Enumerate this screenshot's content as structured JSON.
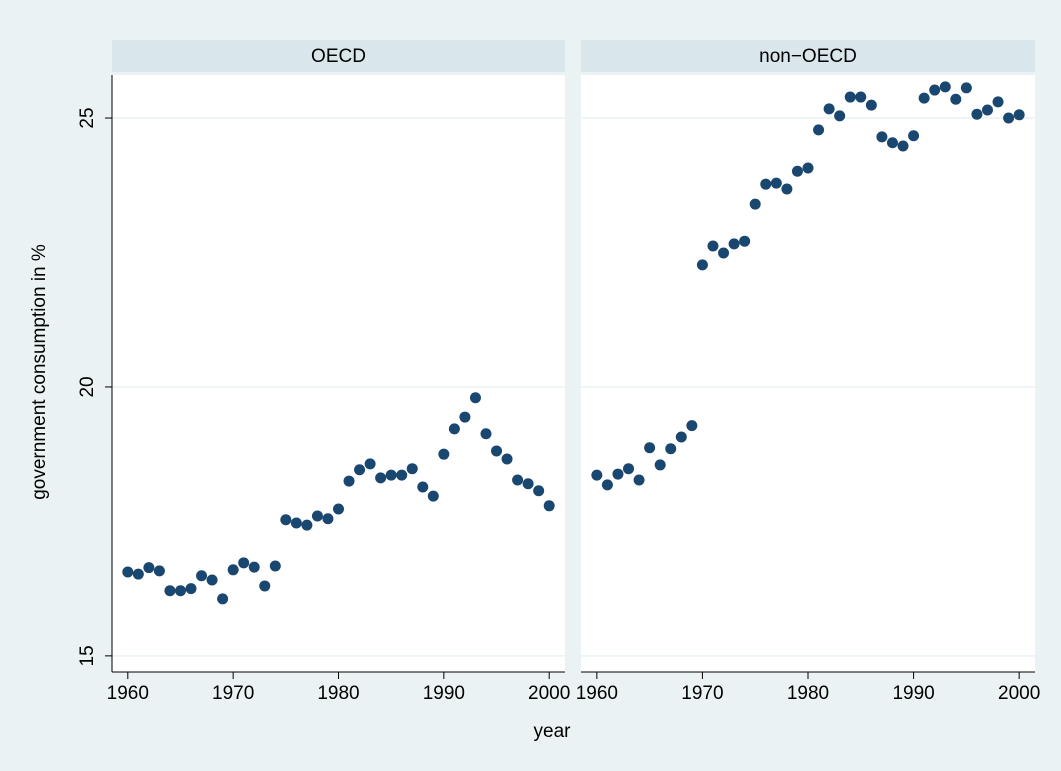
{
  "chart_data": {
    "type": "scatter",
    "xlabel": "year",
    "ylabel": "government consumption in %",
    "xlim": [
      1958.5,
      2001.5
    ],
    "xticks": [
      1960,
      1970,
      1980,
      1990,
      2000
    ],
    "ylim": [
      14.7,
      25.8
    ],
    "yticks": [
      15,
      20,
      25
    ],
    "grid": true,
    "color": "#1a476f",
    "panels": [
      {
        "title": "OECD",
        "x": [
          1960,
          1961,
          1962,
          1963,
          1964,
          1965,
          1966,
          1967,
          1968,
          1969,
          1970,
          1971,
          1972,
          1973,
          1974,
          1975,
          1976,
          1977,
          1978,
          1979,
          1980,
          1981,
          1982,
          1983,
          1984,
          1985,
          1986,
          1987,
          1988,
          1989,
          1990,
          1991,
          1992,
          1993,
          1994,
          1995,
          1996,
          1997,
          1998,
          1999,
          2000
        ],
        "values": [
          16.56,
          16.52,
          16.64,
          16.58,
          16.21,
          16.21,
          16.25,
          16.49,
          16.41,
          16.06,
          16.6,
          16.73,
          16.65,
          16.3,
          16.67,
          17.53,
          17.47,
          17.43,
          17.6,
          17.55,
          17.73,
          18.25,
          18.46,
          18.57,
          18.31,
          18.36,
          18.36,
          18.48,
          18.14,
          17.97,
          18.75,
          19.22,
          19.44,
          19.8,
          19.13,
          18.81,
          18.66,
          18.27,
          18.2,
          18.07,
          17.79
        ]
      },
      {
        "title": "non−OECD",
        "x": [
          1960,
          1961,
          1962,
          1963,
          1964,
          1965,
          1966,
          1967,
          1968,
          1969,
          1970,
          1971,
          1972,
          1973,
          1974,
          1975,
          1976,
          1977,
          1978,
          1979,
          1980,
          1981,
          1982,
          1983,
          1984,
          1985,
          1986,
          1987,
          1988,
          1989,
          1990,
          1991,
          1992,
          1993,
          1994,
          1995,
          1996,
          1997,
          1998,
          1999,
          2000
        ],
        "values": [
          18.36,
          18.18,
          18.38,
          18.48,
          18.27,
          18.87,
          18.55,
          18.85,
          19.07,
          19.28,
          22.27,
          22.62,
          22.49,
          22.66,
          22.71,
          23.4,
          23.77,
          23.79,
          23.68,
          24.01,
          24.07,
          24.78,
          25.17,
          25.04,
          25.39,
          25.39,
          25.24,
          24.65,
          24.54,
          24.48,
          24.67,
          25.37,
          25.52,
          25.58,
          25.35,
          25.56,
          25.07,
          25.15,
          25.3,
          25.0,
          25.06
        ]
      }
    ]
  }
}
